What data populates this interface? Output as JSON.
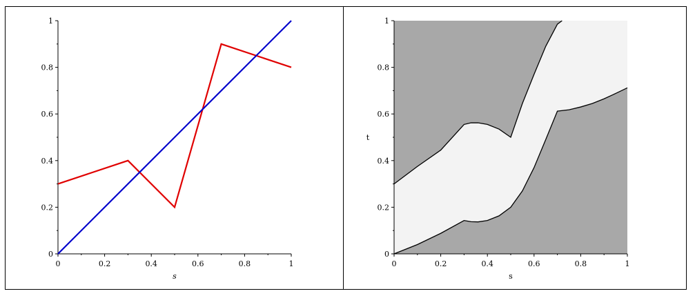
{
  "chart_data": [
    {
      "type": "line",
      "xlabel": "s",
      "ylabel": "",
      "xlim": [
        0,
        1
      ],
      "ylim": [
        0,
        1
      ],
      "xticks": [
        0,
        0.2,
        0.4,
        0.6,
        0.8,
        1
      ],
      "yticks": [
        0,
        0.2,
        0.4,
        0.6,
        0.8,
        1
      ],
      "tick_labels": [
        "0",
        "0.2",
        "0.4",
        "0.6",
        "0.8",
        "1"
      ],
      "series": [
        {
          "color": "#e00000",
          "x": [
            0,
            0.3,
            0.5,
            0.7,
            1
          ],
          "y": [
            0.3,
            0.4,
            0.2,
            0.9,
            0.8
          ]
        },
        {
          "color": "#0000cc",
          "x": [
            0,
            1
          ],
          "y": [
            0,
            1
          ]
        }
      ]
    },
    {
      "type": "area",
      "xlabel": "s",
      "ylabel": "t",
      "xlim": [
        0,
        1
      ],
      "ylim": [
        0,
        1
      ],
      "xticks": [
        0,
        0.2,
        0.4,
        0.6,
        0.8,
        1
      ],
      "yticks": [
        0,
        0.2,
        0.4,
        0.6,
        0.8,
        1
      ],
      "tick_labels": [
        "0",
        "0.2",
        "0.4",
        "0.6",
        "0.8",
        "1"
      ],
      "background_color": "#a8a8a8",
      "region_color": "#f3f3f3",
      "upper_boundary": [
        [
          0,
          0.3
        ],
        [
          0.1,
          0.375
        ],
        [
          0.2,
          0.445
        ],
        [
          0.3,
          0.555
        ],
        [
          0.33,
          0.562
        ],
        [
          0.36,
          0.562
        ],
        [
          0.4,
          0.555
        ],
        [
          0.45,
          0.535
        ],
        [
          0.5,
          0.5
        ],
        [
          0.55,
          0.645
        ],
        [
          0.6,
          0.77
        ],
        [
          0.65,
          0.89
        ],
        [
          0.7,
          0.985
        ],
        [
          0.72,
          1.0
        ],
        [
          1.0,
          1.0
        ]
      ],
      "lower_boundary": [
        [
          0,
          0
        ],
        [
          0.1,
          0.04
        ],
        [
          0.2,
          0.088
        ],
        [
          0.3,
          0.143
        ],
        [
          0.33,
          0.138
        ],
        [
          0.36,
          0.137
        ],
        [
          0.4,
          0.143
        ],
        [
          0.45,
          0.163
        ],
        [
          0.5,
          0.2
        ],
        [
          0.55,
          0.27
        ],
        [
          0.6,
          0.37
        ],
        [
          0.65,
          0.49
        ],
        [
          0.7,
          0.612
        ],
        [
          0.75,
          0.618
        ],
        [
          0.8,
          0.63
        ],
        [
          0.85,
          0.645
        ],
        [
          0.9,
          0.665
        ],
        [
          0.95,
          0.688
        ],
        [
          1.0,
          0.712
        ]
      ]
    }
  ]
}
